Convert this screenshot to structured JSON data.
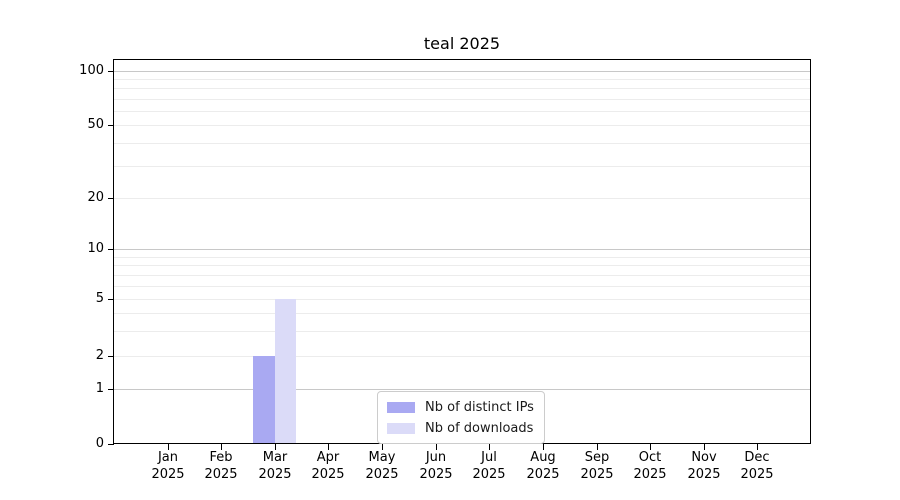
{
  "figure": {
    "background": "#ffffff"
  },
  "chart_data": {
    "type": "bar",
    "title": "teal 2025",
    "categories": [
      "Jan 2025",
      "Feb 2025",
      "Mar 2025",
      "Apr 2025",
      "May 2025",
      "Jun 2025",
      "Jul 2025",
      "Aug 2025",
      "Sep 2025",
      "Oct 2025",
      "Nov 2025",
      "Dec 2025"
    ],
    "series": [
      {
        "name": "Nb of distinct IPs",
        "color": "#a9a9f2",
        "values": [
          0,
          0,
          2,
          0,
          0,
          0,
          0,
          0,
          0,
          0,
          0,
          0
        ]
      },
      {
        "name": "Nb of downloads",
        "color": "#dbdbf8",
        "values": [
          0,
          0,
          5,
          0,
          0,
          0,
          0,
          0,
          0,
          0,
          0,
          0
        ]
      }
    ],
    "xlabel": "",
    "ylabel": "",
    "yscale": "symlog",
    "ylim": [
      0,
      112
    ],
    "y_ticks": [
      0,
      1,
      2,
      5,
      10,
      20,
      50,
      100
    ],
    "y_minor_gridlines": [
      2,
      3,
      4,
      5,
      6,
      7,
      8,
      9,
      20,
      30,
      40,
      50,
      60,
      70,
      80,
      90
    ],
    "y_major_gridlines": [
      1,
      10,
      100
    ],
    "grid": "horizontal",
    "legend_position": "inside-bottom-center",
    "colors": {
      "axis": "#000000",
      "grid_minor": "#ececec",
      "grid_major": "#c8c8c8",
      "text": "#000000",
      "legend_border": "#cccccc",
      "legend_background": "#ffffff"
    }
  }
}
